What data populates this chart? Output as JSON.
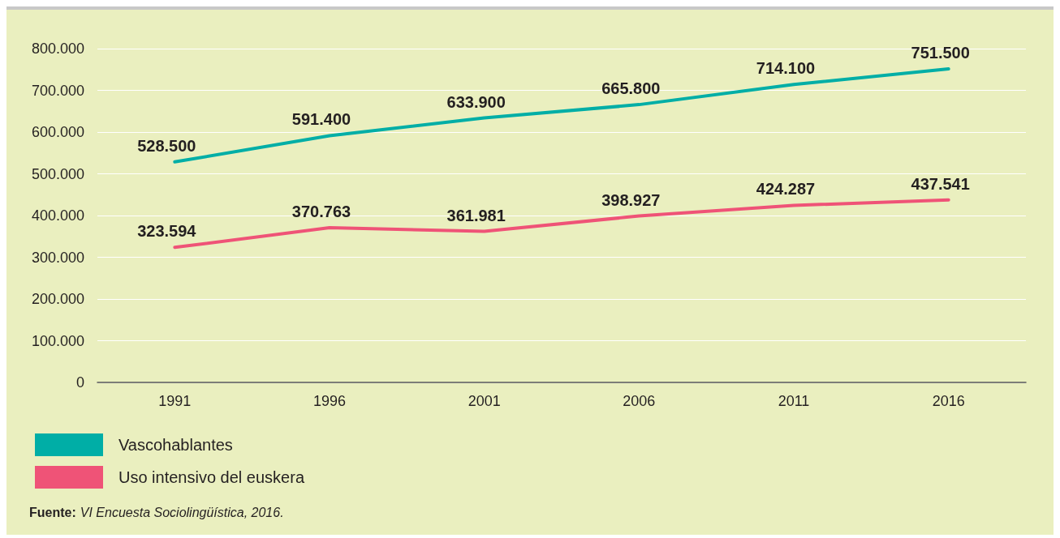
{
  "chart_data": {
    "type": "line",
    "categories": [
      "1991",
      "1996",
      "2001",
      "2006",
      "2011",
      "2016"
    ],
    "series": [
      {
        "name": "Vascohablantes",
        "color": "#00aea6",
        "values": [
          528500,
          591400,
          633900,
          665800,
          714100,
          751500
        ],
        "value_labels": [
          "528.500",
          "591.400",
          "633.900",
          "665.800",
          "714.100",
          "751.500"
        ]
      },
      {
        "name": "Uso intensivo del euskera",
        "color": "#ef5377",
        "values": [
          323594,
          370763,
          361981,
          398927,
          424287,
          437541
        ],
        "value_labels": [
          "323.594",
          "370.763",
          "361.981",
          "398.927",
          "424.287",
          "437.541"
        ]
      }
    ],
    "ylim": [
      0,
      800000
    ],
    "yticks": [
      {
        "value": 0,
        "label": "0"
      },
      {
        "value": 100000,
        "label": "100.000"
      },
      {
        "value": 200000,
        "label": "200.000"
      },
      {
        "value": 300000,
        "label": "300.000"
      },
      {
        "value": 400000,
        "label": "400.000"
      },
      {
        "value": 500000,
        "label": "500.000"
      },
      {
        "value": 600000,
        "label": "600.000"
      },
      {
        "value": 700000,
        "label": "700.000"
      },
      {
        "value": 800000,
        "label": "800.000"
      }
    ],
    "grid": "y",
    "legend": "bottom left",
    "marker": "none",
    "line_style": "solid",
    "annotations": [
      "Fuente:",
      "VI Encuesta Sociolingüística, 2016."
    ]
  }
}
